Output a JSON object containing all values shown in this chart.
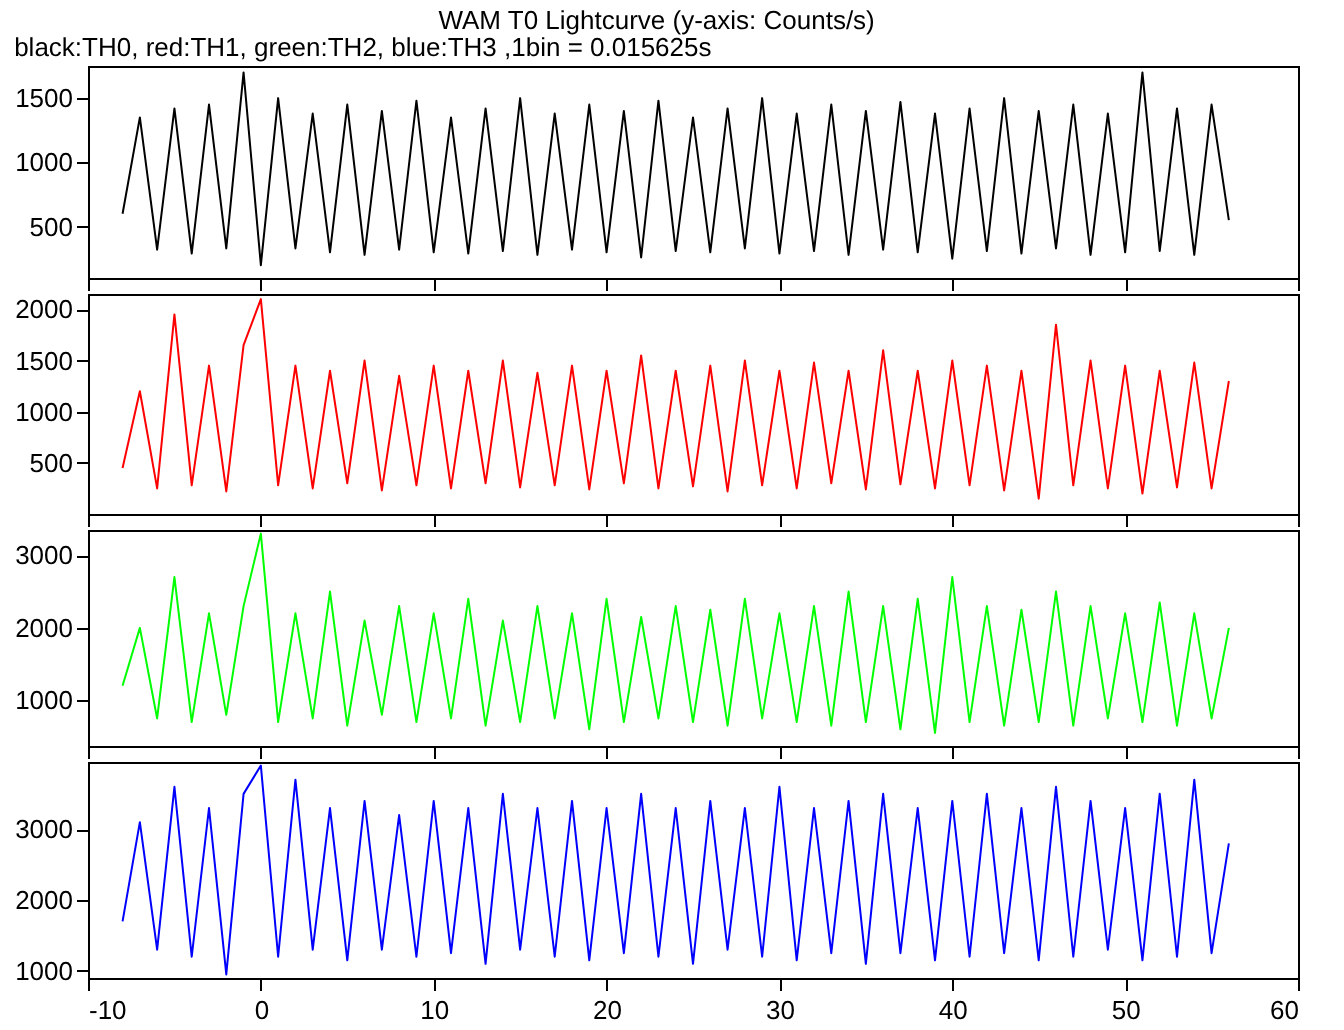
{
  "chart_data": [
    {
      "type": "line",
      "title": "WAM T0 Lightcurve (y-axis: Counts/s)",
      "subtitle": "black:TH0, red:TH1, green:TH2, blue:TH3 ,1bin = 0.015625s",
      "tick_labels": "y",
      "grid": false,
      "xlim": [
        -10,
        60
      ],
      "xticks": [
        -10,
        0,
        10,
        20,
        30,
        40,
        50,
        60
      ],
      "ylim": [
        100,
        1750
      ],
      "yticks": [
        500,
        1000,
        1500
      ],
      "x": [
        -8,
        -7,
        -6,
        -5,
        -4,
        -3,
        -2,
        -1,
        0,
        1,
        2,
        3,
        4,
        5,
        6,
        7,
        8,
        9,
        10,
        11,
        12,
        13,
        14,
        15,
        16,
        17,
        18,
        19,
        20,
        21,
        22,
        23,
        24,
        25,
        26,
        27,
        28,
        29,
        30,
        31,
        32,
        33,
        34,
        35,
        36,
        37,
        38,
        39,
        40,
        41,
        42,
        43,
        44,
        45,
        46,
        47,
        48,
        49,
        50,
        51,
        52,
        53,
        54,
        55,
        56
      ],
      "series": [
        {
          "color": "#000000",
          "values": [
            600,
            1350,
            320,
            1420,
            290,
            1450,
            330,
            1700,
            200,
            1500,
            330,
            1380,
            300,
            1450,
            280,
            1400,
            320,
            1480,
            300,
            1350,
            290,
            1420,
            310,
            1500,
            280,
            1380,
            320,
            1450,
            300,
            1400,
            260,
            1480,
            310,
            1350,
            300,
            1420,
            330,
            1500,
            290,
            1380,
            310,
            1450,
            280,
            1400,
            320,
            1470,
            300,
            1380,
            250,
            1420,
            310,
            1500,
            290,
            1400,
            330,
            1450,
            280,
            1380,
            300,
            1700,
            310,
            1420,
            280,
            1450,
            550
          ]
        }
      ]
    },
    {
      "type": "line",
      "tick_labels": "y",
      "grid": false,
      "xlim": [
        -10,
        60
      ],
      "xticks": [
        -10,
        0,
        10,
        20,
        30,
        40,
        50,
        60
      ],
      "ylim": [
        0,
        2150
      ],
      "yticks": [
        500,
        1000,
        1500,
        2000
      ],
      "x": [
        -8,
        -7,
        -6,
        -5,
        -4,
        -3,
        -2,
        -1,
        0,
        1,
        2,
        3,
        4,
        5,
        6,
        7,
        8,
        9,
        10,
        11,
        12,
        13,
        14,
        15,
        16,
        17,
        18,
        19,
        20,
        21,
        22,
        23,
        24,
        25,
        26,
        27,
        28,
        29,
        30,
        31,
        32,
        33,
        34,
        35,
        36,
        37,
        38,
        39,
        40,
        41,
        42,
        43,
        44,
        45,
        46,
        47,
        48,
        49,
        50,
        51,
        52,
        53,
        54,
        55,
        56
      ],
      "series": [
        {
          "color": "#ff0000",
          "values": [
            450,
            1200,
            250,
            1950,
            280,
            1450,
            220,
            1650,
            2100,
            280,
            1450,
            250,
            1400,
            300,
            1500,
            230,
            1350,
            280,
            1450,
            250,
            1400,
            300,
            1500,
            260,
            1380,
            280,
            1450,
            240,
            1400,
            300,
            1550,
            250,
            1400,
            270,
            1450,
            220,
            1500,
            280,
            1400,
            250,
            1480,
            300,
            1400,
            240,
            1600,
            290,
            1400,
            250,
            1500,
            280,
            1450,
            230,
            1400,
            150,
            1850,
            280,
            1500,
            250,
            1450,
            200,
            1400,
            260,
            1480,
            250,
            1300
          ]
        }
      ]
    },
    {
      "type": "line",
      "tick_labels": "y",
      "grid": false,
      "xlim": [
        -10,
        60
      ],
      "xticks": [
        -10,
        0,
        10,
        20,
        30,
        40,
        50,
        60
      ],
      "ylim": [
        370,
        3350
      ],
      "yticks": [
        1000,
        2000,
        3000
      ],
      "x": [
        -8,
        -7,
        -6,
        -5,
        -4,
        -3,
        -2,
        -1,
        0,
        1,
        2,
        3,
        4,
        5,
        6,
        7,
        8,
        9,
        10,
        11,
        12,
        13,
        14,
        15,
        16,
        17,
        18,
        19,
        20,
        21,
        22,
        23,
        24,
        25,
        26,
        27,
        28,
        29,
        30,
        31,
        32,
        33,
        34,
        35,
        36,
        37,
        38,
        39,
        40,
        41,
        42,
        43,
        44,
        45,
        46,
        47,
        48,
        49,
        50,
        51,
        52,
        53,
        54,
        55,
        56
      ],
      "series": [
        {
          "color": "#00ff00",
          "values": [
            1200,
            2000,
            750,
            2700,
            700,
            2200,
            800,
            2300,
            3300,
            700,
            2200,
            750,
            2500,
            650,
            2100,
            800,
            2300,
            700,
            2200,
            750,
            2400,
            650,
            2100,
            700,
            2300,
            750,
            2200,
            600,
            2400,
            700,
            2150,
            750,
            2300,
            700,
            2250,
            650,
            2400,
            750,
            2200,
            700,
            2300,
            650,
            2500,
            700,
            2300,
            600,
            2400,
            550,
            2700,
            700,
            2300,
            650,
            2250,
            700,
            2500,
            650,
            2300,
            750,
            2200,
            700,
            2350,
            650,
            2200,
            750,
            2000
          ]
        }
      ]
    },
    {
      "type": "line",
      "grid": false,
      "xlim": [
        -10,
        60
      ],
      "xticks": [
        -10,
        0,
        10,
        20,
        30,
        40,
        50,
        60
      ],
      "ylim": [
        900,
        3950
      ],
      "yticks": [
        1000,
        2000,
        3000
      ],
      "x": [
        -8,
        -7,
        -6,
        -5,
        -4,
        -3,
        -2,
        -1,
        0,
        1,
        2,
        3,
        4,
        5,
        6,
        7,
        8,
        9,
        10,
        11,
        12,
        13,
        14,
        15,
        16,
        17,
        18,
        19,
        20,
        21,
        22,
        23,
        24,
        25,
        26,
        27,
        28,
        29,
        30,
        31,
        32,
        33,
        34,
        35,
        36,
        37,
        38,
        39,
        40,
        41,
        42,
        43,
        44,
        45,
        46,
        47,
        48,
        49,
        50,
        51,
        52,
        53,
        54,
        55,
        56
      ],
      "series": [
        {
          "color": "#0000ff",
          "values": [
            1700,
            3100,
            1300,
            3600,
            1200,
            3300,
            950,
            3500,
            3900,
            1200,
            3700,
            1300,
            3300,
            1150,
            3400,
            1300,
            3200,
            1200,
            3400,
            1250,
            3300,
            1100,
            3500,
            1300,
            3300,
            1200,
            3400,
            1150,
            3300,
            1250,
            3500,
            1200,
            3300,
            1100,
            3400,
            1300,
            3300,
            1200,
            3600,
            1150,
            3300,
            1250,
            3400,
            1100,
            3500,
            1250,
            3300,
            1150,
            3400,
            1200,
            3500,
            1250,
            3300,
            1150,
            3600,
            1200,
            3400,
            1300,
            3300,
            1150,
            3500,
            1200,
            3700,
            1250,
            2800
          ]
        }
      ]
    }
  ]
}
